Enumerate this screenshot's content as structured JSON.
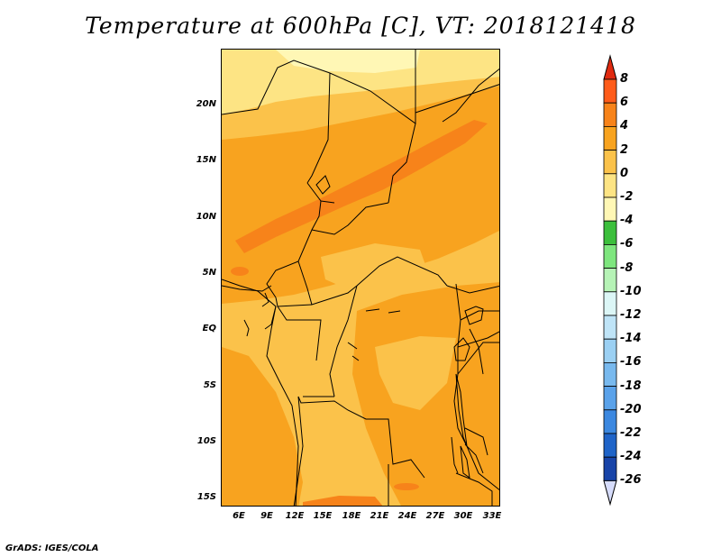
{
  "title": "Temperature at 600hPa [C], VT: 2018121418",
  "footer": "GrADS: IGES/COLA",
  "map": {
    "lon_range": [
      3,
      34
    ],
    "lat_range": [
      -16,
      25
    ],
    "lat_ticks": [
      "20N",
      "15N",
      "10N",
      "5N",
      "EQ",
      "5S",
      "10S",
      "15S"
    ],
    "lon_ticks": [
      "6E",
      "9E",
      "12E",
      "15E",
      "18E",
      "21E",
      "24E",
      "27E",
      "30E",
      "33E"
    ],
    "field": "temperature",
    "units": "C",
    "level": "600hPa"
  },
  "colorbar": {
    "labels": [
      "8",
      "6",
      "4",
      "2",
      "0",
      "-2",
      "-4",
      "-6",
      "-8",
      "-10",
      "-12",
      "-14",
      "-16",
      "-18",
      "-20",
      "-22",
      "-24",
      "-26"
    ],
    "colors": [
      "#e02a10",
      "#ff5c1a",
      "#f7831a",
      "#f8a31f",
      "#fbc24a",
      "#fde484",
      "#fff7b5",
      "#3cbf3c",
      "#7ee67e",
      "#b6f3b6",
      "#dcf6f6",
      "#bfe4f7",
      "#9bd0f3",
      "#78b9ee",
      "#5aa2ea",
      "#3c88e0",
      "#1f64c8",
      "#1844a8",
      "#0e1f78"
    ],
    "end_colors": {
      "top": "#e02a10",
      "bottom": "#d6dcfb"
    }
  }
}
